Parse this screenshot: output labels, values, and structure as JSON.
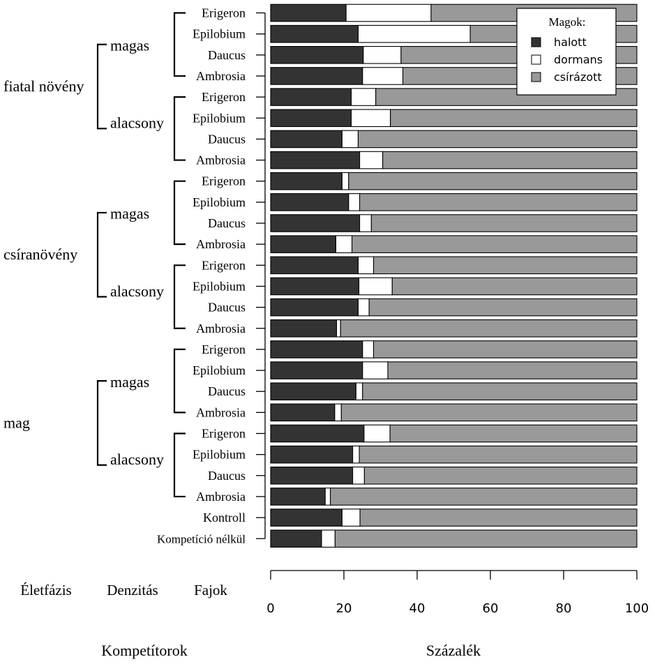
{
  "chart_data": {
    "type": "bar",
    "orientation": "horizontal",
    "stacked": true,
    "xlabel": "Százalék",
    "left_axis_label": "Kompetítorok",
    "column_headers": [
      "Életfázis",
      "Denzitás",
      "Fajok"
    ],
    "xlim": [
      0,
      100
    ],
    "xticks": [
      0,
      20,
      40,
      60,
      80,
      100
    ],
    "legend": {
      "title": "Magok:",
      "position": "top-right",
      "entries": [
        "halott",
        "dormans",
        "csírázott"
      ]
    },
    "colors": {
      "halott": "#333333",
      "dormans": "#ffffff",
      "csírázott": "#999999"
    },
    "categories": [
      "Erigeron",
      "Epilobium",
      "Daucus",
      "Ambrosia",
      "Erigeron",
      "Epilobium",
      "Daucus",
      "Ambrosia",
      "Erigeron",
      "Epilobium",
      "Daucus",
      "Ambrosia",
      "Erigeron",
      "Epilobium",
      "Daucus",
      "Ambrosia",
      "Erigeron",
      "Epilobium",
      "Daucus",
      "Ambrosia",
      "Erigeron",
      "Epilobium",
      "Daucus",
      "Ambrosia",
      "Kontroll",
      "Kompetíció nélkül"
    ],
    "series": [
      {
        "name": "halott",
        "values": [
          20.6,
          23.9,
          25.3,
          25.1,
          22.0,
          22.0,
          19.5,
          24.3,
          19.5,
          21.3,
          24.3,
          17.8,
          23.9,
          24.1,
          23.9,
          18.0,
          25.1,
          25.1,
          23.3,
          17.5,
          25.5,
          22.4,
          22.4,
          14.9,
          19.5,
          13.9
        ]
      },
      {
        "name": "dormans",
        "values": [
          23.2,
          30.6,
          10.3,
          11.0,
          6.7,
          10.7,
          4.4,
          6.3,
          1.8,
          3.0,
          3.2,
          4.4,
          4.2,
          9.1,
          3.0,
          1.1,
          3.0,
          6.9,
          1.8,
          1.8,
          7.1,
          1.8,
          3.2,
          1.4,
          4.9,
          3.7
        ]
      },
      {
        "name": "csírázott",
        "values": [
          56.2,
          45.5,
          64.4,
          63.9,
          71.3,
          67.3,
          76.1,
          69.4,
          78.7,
          75.7,
          72.5,
          77.8,
          71.9,
          66.8,
          73.1,
          80.9,
          71.9,
          68.0,
          74.9,
          80.7,
          67.4,
          75.8,
          74.4,
          83.7,
          75.6,
          82.4
        ]
      }
    ],
    "groups": [
      {
        "phase": "fiatal növény",
        "densities": [
          "magas",
          "alacsony"
        ]
      },
      {
        "phase": "csíranövény",
        "densities": [
          "magas",
          "alacsony"
        ]
      },
      {
        "phase": "mag",
        "densities": [
          "magas",
          "alacsony"
        ]
      }
    ]
  }
}
